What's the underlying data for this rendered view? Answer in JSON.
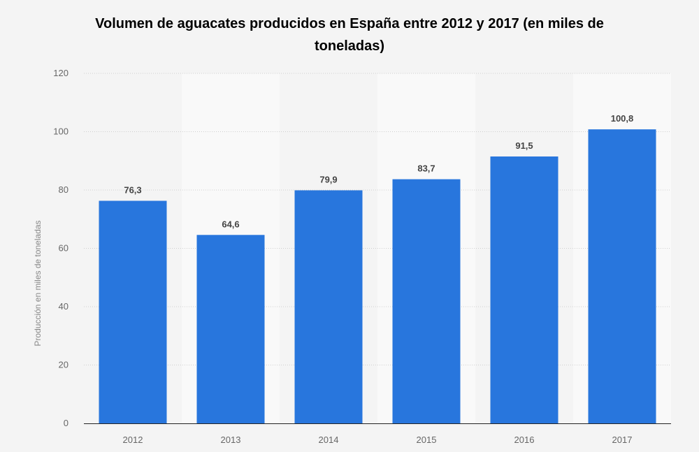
{
  "chart_data": {
    "type": "bar",
    "title": "Volumen de aguacates producidos en España entre 2012 y 2017 (en miles de toneladas)",
    "xlabel": "",
    "ylabel": "Producción en miles de toneladas",
    "categories": [
      "2012",
      "2013",
      "2014",
      "2015",
      "2016",
      "2017"
    ],
    "values": [
      76.3,
      64.6,
      79.9,
      83.7,
      91.5,
      100.8
    ],
    "value_labels": [
      "76,3",
      "64,6",
      "79,9",
      "83,7",
      "91,5",
      "100,8"
    ],
    "ylim": [
      0,
      120
    ],
    "yticks": [
      0,
      20,
      40,
      60,
      80,
      100,
      120
    ],
    "grid": true,
    "legend": "none",
    "colors": {
      "bar": "#2876dd",
      "band": "#f9f9f9",
      "background": "#f4f4f4",
      "grid": "#cfcfcf",
      "axis": "#222222"
    }
  }
}
